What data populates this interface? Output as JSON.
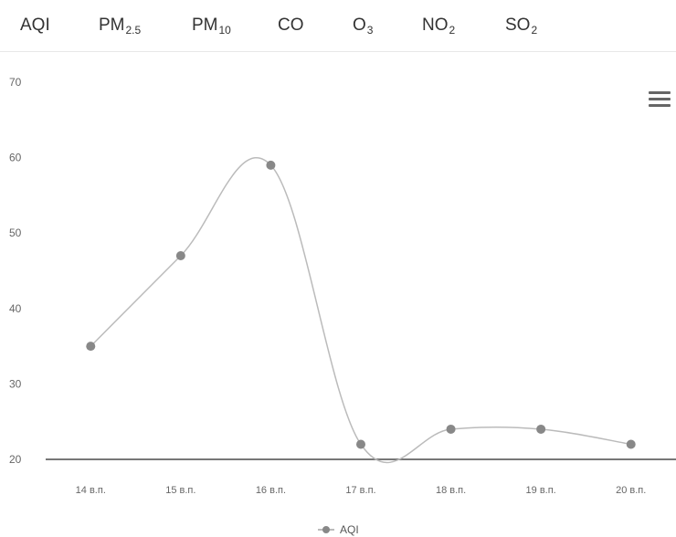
{
  "tabs": {
    "aqi": {
      "label": "AQI",
      "sub": ""
    },
    "pm25": {
      "label": "PM",
      "sub": "2.5"
    },
    "pm10": {
      "label": "PM",
      "sub": "10"
    },
    "co": {
      "label": "CO",
      "sub": ""
    },
    "o3": {
      "label": "O",
      "sub": "3"
    },
    "no2": {
      "label": "NO",
      "sub": "2"
    },
    "so2": {
      "label": "SO",
      "sub": "2"
    }
  },
  "menu_icon": "hamburger-menu-icon",
  "chart_data": {
    "type": "line",
    "categories": [
      "14 в.п.",
      "15 в.п.",
      "16 в.п.",
      "17 в.п.",
      "18 в.п.",
      "19 в.п.",
      "20 в.п."
    ],
    "series": [
      {
        "name": "AQI",
        "values": [
          35,
          47,
          59,
          22,
          24,
          24,
          22
        ]
      }
    ],
    "ylim": [
      20,
      70
    ],
    "yticks": [
      "20",
      "30",
      "40",
      "50",
      "60",
      "70"
    ],
    "grid": false,
    "legend": "bottom-center",
    "line_color": "#bbbbbb",
    "marker_color": "#888888",
    "axis_color": "#777777"
  }
}
